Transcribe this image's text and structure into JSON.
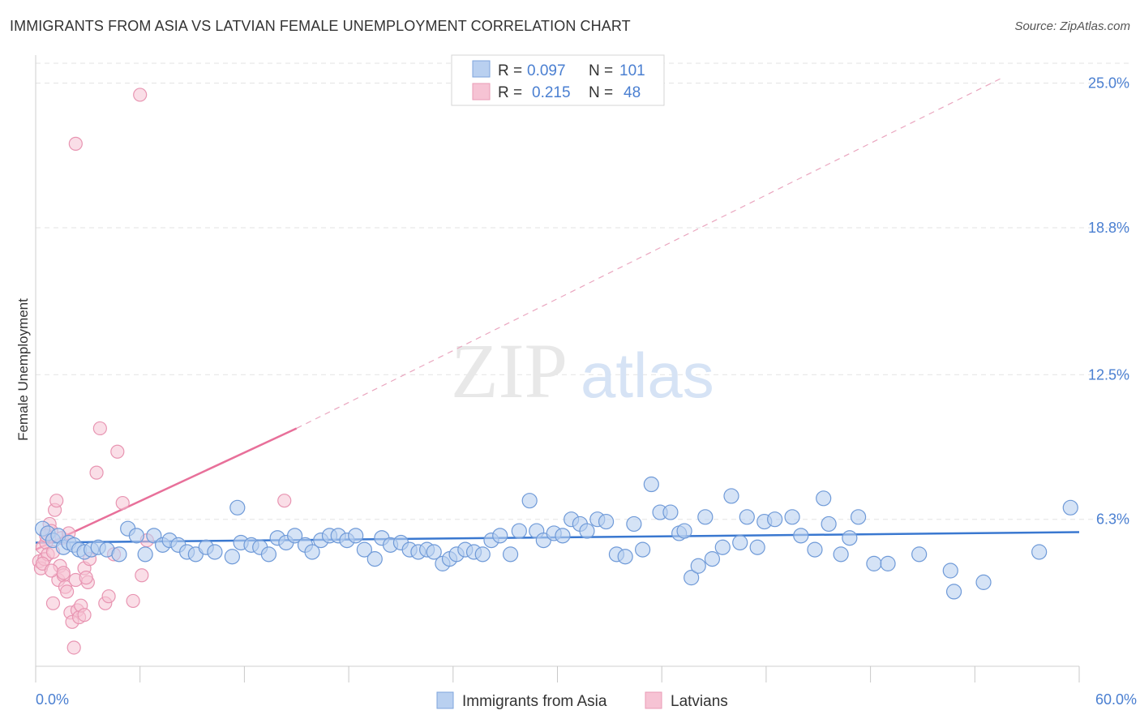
{
  "title": "IMMIGRANTS FROM ASIA VS LATVIAN FEMALE UNEMPLOYMENT CORRELATION CHART",
  "source": "Source: ZipAtlas.com",
  "watermark": {
    "part1": "ZIP",
    "part2": "atlas"
  },
  "colors": {
    "blue": "#4a7fd1",
    "blue_fill": "#b9d0f0",
    "pink": "#e8709a",
    "pink_fill": "#f6c3d4",
    "grid": "#e3e3e3"
  },
  "legend": {
    "rows": [
      {
        "r_label": "R =",
        "r_value": "0.097",
        "n_label": "N =",
        "n_value": "101"
      },
      {
        "r_label": "R =",
        "r_value": "0.215",
        "n_label": "N =",
        "n_value": "48"
      }
    ]
  },
  "bottom_legend": {
    "series1": "Immigrants from Asia",
    "series2": "Latvians"
  },
  "chart_data": {
    "type": "scatter",
    "title": "IMMIGRANTS FROM ASIA VS LATVIAN FEMALE UNEMPLOYMENT CORRELATION CHART",
    "xlabel": "",
    "ylabel": "Female Unemployment",
    "xlim": [
      0,
      60
    ],
    "ylim": [
      0,
      26.2
    ],
    "x_tick_labels": [
      "0.0%",
      "60.0%"
    ],
    "y_ticks": [
      {
        "value": 6.3,
        "label": "6.3%"
      },
      {
        "value": 12.5,
        "label": "12.5%"
      },
      {
        "value": 18.8,
        "label": "18.8%"
      },
      {
        "value": 25.0,
        "label": "25.0%"
      }
    ],
    "series": [
      {
        "name": "Immigrants from Asia",
        "color": "#4a7fd1",
        "R": 0.097,
        "N": 101,
        "trend": {
          "x": [
            0,
            60
          ],
          "y": [
            5.3,
            5.75
          ]
        },
        "points": [
          [
            0.4,
            5.9
          ],
          [
            0.7,
            5.7
          ],
          [
            1.0,
            5.4
          ],
          [
            1.3,
            5.6
          ],
          [
            1.6,
            5.1
          ],
          [
            1.9,
            5.3
          ],
          [
            2.2,
            5.2
          ],
          [
            2.5,
            5.0
          ],
          [
            2.8,
            4.9
          ],
          [
            3.2,
            5.0
          ],
          [
            3.6,
            5.1
          ],
          [
            4.1,
            5.0
          ],
          [
            4.8,
            4.8
          ],
          [
            5.3,
            5.9
          ],
          [
            5.8,
            5.6
          ],
          [
            6.3,
            4.8
          ],
          [
            6.8,
            5.6
          ],
          [
            7.3,
            5.2
          ],
          [
            7.7,
            5.4
          ],
          [
            8.2,
            5.2
          ],
          [
            8.7,
            4.9
          ],
          [
            9.2,
            4.8
          ],
          [
            9.8,
            5.1
          ],
          [
            10.3,
            4.9
          ],
          [
            11.3,
            4.7
          ],
          [
            11.6,
            6.8
          ],
          [
            11.8,
            5.3
          ],
          [
            12.4,
            5.2
          ],
          [
            12.9,
            5.1
          ],
          [
            13.4,
            4.8
          ],
          [
            13.9,
            5.5
          ],
          [
            14.4,
            5.3
          ],
          [
            14.9,
            5.6
          ],
          [
            15.5,
            5.2
          ],
          [
            15.9,
            4.9
          ],
          [
            16.4,
            5.4
          ],
          [
            16.9,
            5.6
          ],
          [
            17.4,
            5.6
          ],
          [
            17.9,
            5.4
          ],
          [
            18.4,
            5.6
          ],
          [
            18.9,
            5.0
          ],
          [
            19.5,
            4.6
          ],
          [
            19.9,
            5.5
          ],
          [
            20.4,
            5.2
          ],
          [
            21.0,
            5.3
          ],
          [
            21.5,
            5.0
          ],
          [
            22.0,
            4.9
          ],
          [
            22.5,
            5.0
          ],
          [
            22.9,
            4.9
          ],
          [
            23.4,
            4.4
          ],
          [
            23.8,
            4.6
          ],
          [
            24.2,
            4.8
          ],
          [
            24.7,
            5.0
          ],
          [
            25.2,
            4.9
          ],
          [
            25.7,
            4.8
          ],
          [
            26.2,
            5.4
          ],
          [
            26.7,
            5.6
          ],
          [
            27.3,
            4.8
          ],
          [
            27.8,
            5.8
          ],
          [
            28.4,
            7.1
          ],
          [
            28.8,
            5.8
          ],
          [
            29.2,
            5.4
          ],
          [
            29.8,
            5.7
          ],
          [
            30.3,
            5.6
          ],
          [
            30.8,
            6.3
          ],
          [
            31.3,
            6.1
          ],
          [
            31.7,
            5.8
          ],
          [
            32.3,
            6.3
          ],
          [
            32.8,
            6.2
          ],
          [
            33.4,
            4.8
          ],
          [
            33.9,
            4.7
          ],
          [
            34.4,
            6.1
          ],
          [
            34.9,
            5.0
          ],
          [
            35.4,
            7.8
          ],
          [
            35.9,
            6.6
          ],
          [
            36.5,
            6.6
          ],
          [
            37.0,
            5.7
          ],
          [
            37.3,
            5.8
          ],
          [
            37.7,
            3.8
          ],
          [
            38.1,
            4.3
          ],
          [
            38.5,
            6.4
          ],
          [
            38.9,
            4.6
          ],
          [
            39.5,
            5.1
          ],
          [
            40.0,
            7.3
          ],
          [
            40.5,
            5.3
          ],
          [
            40.9,
            6.4
          ],
          [
            41.5,
            5.1
          ],
          [
            41.9,
            6.2
          ],
          [
            42.5,
            6.3
          ],
          [
            43.5,
            6.4
          ],
          [
            44.0,
            5.6
          ],
          [
            44.8,
            5.0
          ],
          [
            45.3,
            7.2
          ],
          [
            45.6,
            6.1
          ],
          [
            46.3,
            4.8
          ],
          [
            46.8,
            5.5
          ],
          [
            47.3,
            6.4
          ],
          [
            48.2,
            4.4
          ],
          [
            49.0,
            4.4
          ],
          [
            50.8,
            4.8
          ],
          [
            52.6,
            4.1
          ],
          [
            52.8,
            3.2
          ],
          [
            54.5,
            3.6
          ],
          [
            57.7,
            4.9
          ],
          [
            59.5,
            6.8
          ]
        ]
      },
      {
        "name": "Latvians",
        "color": "#e8709a",
        "R": 0.215,
        "N": 48,
        "trend": {
          "x": [
            0,
            15
          ],
          "y": [
            5.0,
            10.2
          ]
        },
        "trend_extended": {
          "x": [
            15,
            55.5
          ],
          "y": [
            10.2,
            25.2
          ]
        },
        "points": [
          [
            0.2,
            4.5
          ],
          [
            0.3,
            4.2
          ],
          [
            0.4,
            5.1
          ],
          [
            0.5,
            4.6
          ],
          [
            0.6,
            5.3
          ],
          [
            0.7,
            4.8
          ],
          [
            0.8,
            6.1
          ],
          [
            0.9,
            5.8
          ],
          [
            1.0,
            4.9
          ],
          [
            1.0,
            2.7
          ],
          [
            1.1,
            6.7
          ],
          [
            1.2,
            7.1
          ],
          [
            1.3,
            3.7
          ],
          [
            1.4,
            4.3
          ],
          [
            1.5,
            5.5
          ],
          [
            1.6,
            3.9
          ],
          [
            1.7,
            3.4
          ],
          [
            1.8,
            3.2
          ],
          [
            1.9,
            5.7
          ],
          [
            2.0,
            2.3
          ],
          [
            2.1,
            1.9
          ],
          [
            2.2,
            0.8
          ],
          [
            2.3,
            3.7
          ],
          [
            2.4,
            2.4
          ],
          [
            2.5,
            2.1
          ],
          [
            2.6,
            2.6
          ],
          [
            2.8,
            2.2
          ],
          [
            2.8,
            4.2
          ],
          [
            3.0,
            3.6
          ],
          [
            3.1,
            4.6
          ],
          [
            3.5,
            8.3
          ],
          [
            3.7,
            10.2
          ],
          [
            4.0,
            2.7
          ],
          [
            4.2,
            3.0
          ],
          [
            4.5,
            4.8
          ],
          [
            4.7,
            9.2
          ],
          [
            5.0,
            7.0
          ],
          [
            5.6,
            2.8
          ],
          [
            6.0,
            24.5
          ],
          [
            6.1,
            3.9
          ],
          [
            2.3,
            22.4
          ],
          [
            6.4,
            5.4
          ],
          [
            14.3,
            7.1
          ],
          [
            0.4,
            4.4
          ],
          [
            0.9,
            4.1
          ],
          [
            1.6,
            4.0
          ],
          [
            2.9,
            3.8
          ],
          [
            0.6,
            5.6
          ]
        ]
      }
    ]
  }
}
